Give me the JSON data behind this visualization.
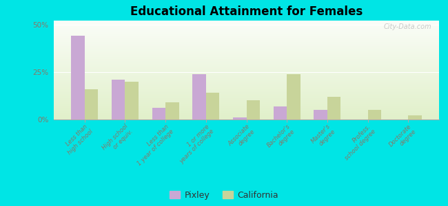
{
  "title": "Educational Attainment for Females",
  "categories": [
    "Less than\nhigh school",
    "High school\nor equiv.",
    "Less than\n1 year of college",
    "1 or more\nyears of college",
    "Associate\ndegree",
    "Bachelor's\ndegree",
    "Master's\ndegree",
    "Profess.\nschool degree",
    "Doctorate\ndegree"
  ],
  "pixley": [
    44,
    21,
    6,
    24,
    1,
    7,
    5,
    0,
    0
  ],
  "california": [
    16,
    20,
    9,
    14,
    10,
    24,
    12,
    5,
    2
  ],
  "pixley_color": "#c9a8d4",
  "california_color": "#c8d49a",
  "outer_bg": "#00e5e5",
  "ylim": [
    0,
    52
  ],
  "yticks": [
    0,
    25,
    50
  ],
  "ytick_labels": [
    "0%",
    "25%",
    "50%"
  ]
}
